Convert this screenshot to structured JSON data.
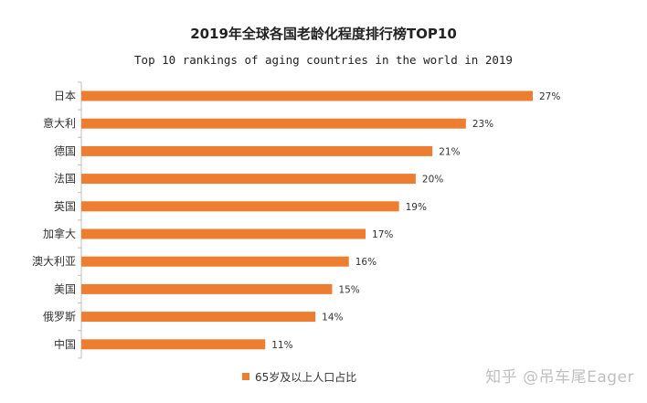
{
  "chart_data": {
    "type": "bar",
    "orientation": "horizontal",
    "title": "2019年全球各国老龄化程度排行榜TOP10",
    "subtitle": "Top 10 rankings of aging countries in the world in 2019",
    "categories": [
      "日本",
      "意大利",
      "德国",
      "法国",
      "英国",
      "加拿大",
      "澳大利亚",
      "美国",
      "俄罗斯",
      "中国"
    ],
    "values": [
      27,
      23,
      21,
      20,
      19,
      17,
      16,
      15,
      14,
      11
    ],
    "data_labels": [
      "27%",
      "23%",
      "21%",
      "20%",
      "19%",
      "17%",
      "16%",
      "15%",
      "14%",
      "11%"
    ],
    "series": [
      {
        "name": "65岁及以上人口占比",
        "values": [
          27,
          23,
          21,
          20,
          19,
          17,
          16,
          15,
          14,
          11
        ]
      }
    ],
    "xlim": [
      0,
      27
    ],
    "grid": false,
    "legend_position": "bottom-center",
    "bar_color": "#ED7D31"
  },
  "watermark": "知乎 @吊车尾Eager"
}
